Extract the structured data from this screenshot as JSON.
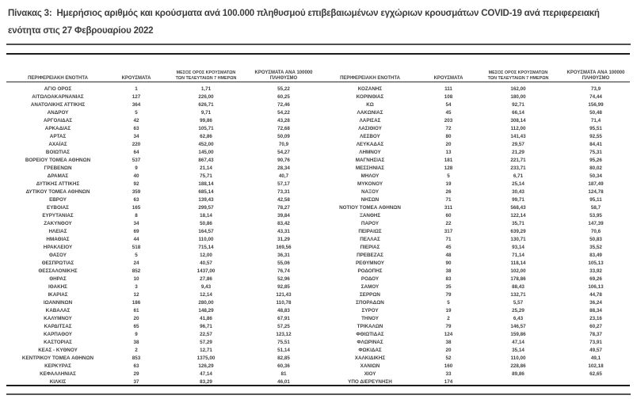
{
  "title": "Πίνακας 3:  Ημερήσιος αριθμός και κρούσματα ανά 100.000 πληθυσμού επιβεβαιωμένων εγχώριων κρουσμάτων COVID-19 ανά περιφερειακή ενότητα στις 27 Φεβρουαρίου 2022",
  "table": {
    "columns": {
      "region": "ΠΕΡΙΦΕΡΕΙΑΚΗ ΕΝΟΤΗΤΑ",
      "cases": "ΚΡΟΥΣΜΑΤΑ",
      "avg7": "ΜΕΣΟΣ ΟΡΟΣ ΚΡΟΥΣΜΑΤΩΝ ΤΩΝ ΤΕΛΕΥΤΑΙΩΝ 7 ΗΜΕΡΩΝ",
      "per100k": "ΚΡΟΥΣΜΑΤΑ ΑΝΑ 100000 ΠΛΗΘΥΣΜΟ"
    },
    "left_rows": [
      [
        "ΑΓΙΟ ΟΡΟΣ",
        "1",
        "1,71",
        "55,22"
      ],
      [
        "ΑΙΤΩΛΟΑΚΑΡΝΑΝΙΑΣ",
        "127",
        "226,00",
        "60,25"
      ],
      [
        "ΑΝΑΤΟΛΙΚΗΣ ΑΤΤΙΚΗΣ",
        "364",
        "626,71",
        "72,46"
      ],
      [
        "ΑΝΔΡΟΥ",
        "5",
        "9,71",
        "54,22"
      ],
      [
        "ΑΡΓΟΛΙΔΑΣ",
        "42",
        "99,86",
        "43,28"
      ],
      [
        "ΑΡΚΑΔΙΑΣ",
        "63",
        "105,71",
        "72,68"
      ],
      [
        "ΑΡΤΑΣ",
        "34",
        "62,86",
        "50,09"
      ],
      [
        "ΑΧΑΪΑΣ",
        "220",
        "452,00",
        "70,9"
      ],
      [
        "ΒΟΙΩΤΙΑΣ",
        "64",
        "145,00",
        "54,27"
      ],
      [
        "ΒΟΡΕΙΟΥ ΤΟΜΕΑ ΑΘΗΝΩΝ",
        "537",
        "867,43",
        "90,76"
      ],
      [
        "ΓΡΕΒΕΝΩΝ",
        "9",
        "21,14",
        "28,34"
      ],
      [
        "ΔΡΑΜΑΣ",
        "40",
        "75,71",
        "40,7"
      ],
      [
        "ΔΥΤΙΚΗΣ ΑΤΤΙΚΗΣ",
        "92",
        "188,14",
        "57,17"
      ],
      [
        "ΔΥΤΙΚΟΥ ΤΟΜΕΑ ΑΘΗΝΩΝ",
        "359",
        "685,14",
        "73,31"
      ],
      [
        "ΕΒΡΟΥ",
        "63",
        "139,43",
        "42,58"
      ],
      [
        "ΕΥΒΟΙΑΣ",
        "165",
        "299,57",
        "78,27"
      ],
      [
        "ΕΥΡΥΤΑΝΙΑΣ",
        "8",
        "18,14",
        "39,84"
      ],
      [
        "ΖΑΚΥΝΘΟΥ",
        "34",
        "50,86",
        "83,42"
      ],
      [
        "ΗΛΕΙΑΣ",
        "69",
        "164,57",
        "43,31"
      ],
      [
        "ΗΜΑΘΙΑΣ",
        "44",
        "110,00",
        "31,29"
      ],
      [
        "ΗΡΑΚΛΕΙΟΥ",
        "518",
        "715,14",
        "169,56"
      ],
      [
        "ΘΑΣΟΥ",
        "5",
        "12,00",
        "36,31"
      ],
      [
        "ΘΕΣΠΡΩΤΙΑΣ",
        "24",
        "40,57",
        "55,06"
      ],
      [
        "ΘΕΣΣΑΛΟΝΙΚΗΣ",
        "852",
        "1437,00",
        "76,74"
      ],
      [
        "ΘΗΡΑΣ",
        "10",
        "27,86",
        "52,96"
      ],
      [
        "ΙΘΑΚΗΣ",
        "3",
        "9,43",
        "92,85"
      ],
      [
        "ΙΚΑΡΙΑΣ",
        "12",
        "12,14",
        "121,43"
      ],
      [
        "ΙΩΑΝΝΙΝΩΝ",
        "186",
        "280,00",
        "110,78"
      ],
      [
        "ΚΑΒΑΛΑΣ",
        "61",
        "148,29",
        "48,83"
      ],
      [
        "ΚΑΛΥΜΝΟΥ",
        "20",
        "41,86",
        "67,91"
      ],
      [
        "ΚΑΡΔΙΤΣΑΣ",
        "65",
        "96,71",
        "57,25"
      ],
      [
        "ΚΑΡΠΑΘΟΥ",
        "9",
        "22,57",
        "123,12"
      ],
      [
        "ΚΑΣΤΟΡΙΑΣ",
        "38",
        "57,29",
        "75,51"
      ],
      [
        "ΚΕΑΣ - ΚΥΘΝΟΥ",
        "2",
        "12,71",
        "51,14"
      ],
      [
        "ΚΕΝΤΡΙΚΟΥ ΤΟΜΕΑ ΑΘΗΝΩΝ",
        "853",
        "1375,00",
        "82,85"
      ],
      [
        "ΚΕΡΚΥΡΑΣ",
        "63",
        "126,29",
        "60,36"
      ],
      [
        "ΚΕΦΑΛΛΗΝΙΑΣ",
        "29",
        "47,14",
        "81"
      ],
      [
        "ΚΙΛΚΙΣ",
        "37",
        "83,29",
        "46,01"
      ]
    ],
    "right_rows": [
      [
        "ΚΟΖΑΝΗΣ",
        "111",
        "162,00",
        "73,9"
      ],
      [
        "ΚΟΡΙΝΘΙΑΣ",
        "108",
        "180,00",
        "74,44"
      ],
      [
        "ΚΩ",
        "54",
        "92,71",
        "156,99"
      ],
      [
        "ΛΑΚΩΝΙΑΣ",
        "45",
        "66,14",
        "50,48"
      ],
      [
        "ΛΑΡΙΣΑΣ",
        "203",
        "308,14",
        "71,4"
      ],
      [
        "ΛΑΣΙΘΙΟΥ",
        "72",
        "112,00",
        "95,51"
      ],
      [
        "ΛΕΣΒΟΥ",
        "80",
        "141,43",
        "92,55"
      ],
      [
        "ΛΕΥΚΑΔΑΣ",
        "20",
        "29,57",
        "84,41"
      ],
      [
        "ΛΗΜΝΟΥ",
        "13",
        "21,29",
        "75,31"
      ],
      [
        "ΜΑΓΝΗΣΙΑΣ",
        "181",
        "221,71",
        "95,26"
      ],
      [
        "ΜΕΣΣΗΝΙΑΣ",
        "128",
        "233,71",
        "80,02"
      ],
      [
        "ΜΗΛΟΥ",
        "5",
        "6,71",
        "50,34"
      ],
      [
        "ΜΥΚΟΝΟΥ",
        "19",
        "25,14",
        "187,49"
      ],
      [
        "ΝΑΞΟΥ",
        "26",
        "30,43",
        "124,78"
      ],
      [
        "ΝΗΣΩΝ",
        "71",
        "99,71",
        "95,11"
      ],
      [
        "ΝΟΤΙΟΥ ΤΟΜΕΑ ΑΘΗΝΩΝ",
        "311",
        "568,43",
        "58,7"
      ],
      [
        "ΞΑΝΘΗΣ",
        "60",
        "122,14",
        "53,95"
      ],
      [
        "ΠΑΡΟΥ",
        "22",
        "35,71",
        "147,39"
      ],
      [
        "ΠΕΙΡΑΙΩΣ",
        "317",
        "639,29",
        "70,6"
      ],
      [
        "ΠΕΛΛΑΣ",
        "71",
        "130,71",
        "50,83"
      ],
      [
        "ΠΙΕΡΙΑΣ",
        "45",
        "93,14",
        "35,52"
      ],
      [
        "ΠΡΕΒΕΖΑΣ",
        "48",
        "71,14",
        "83,49"
      ],
      [
        "ΡΕΘΥΜΝΟΥ",
        "90",
        "118,14",
        "105,13"
      ],
      [
        "ΡΟΔΟΠΗΣ",
        "38",
        "102,00",
        "33,92"
      ],
      [
        "ΡΟΔΟΥ",
        "83",
        "178,86",
        "69,26"
      ],
      [
        "ΣΑΜΟΥ",
        "35",
        "88,43",
        "106,13"
      ],
      [
        "ΣΕΡΡΩΝ",
        "79",
        "132,71",
        "44,78"
      ],
      [
        "ΣΠΟΡΑΔΩΝ",
        "5",
        "5,57",
        "36,24"
      ],
      [
        "ΣΥΡΟΥ",
        "19",
        "25,29",
        "88,34"
      ],
      [
        "ΤΗΝΟΥ",
        "2",
        "6,43",
        "23,16"
      ],
      [
        "ΤΡΙΚΑΛΩΝ",
        "79",
        "146,57",
        "60,27"
      ],
      [
        "ΦΘΙΩΤΙΔΑΣ",
        "124",
        "159,86",
        "78,37"
      ],
      [
        "ΦΛΩΡΙΝΑΣ",
        "38",
        "47,14",
        "73,91"
      ],
      [
        "ΦΩΚΙΔΑΣ",
        "20",
        "35,14",
        "49,57"
      ],
      [
        "ΧΑΛΚΙΔΙΚΗΣ",
        "52",
        "110,00",
        "49,1"
      ],
      [
        "ΧΑΝΙΩΝ",
        "160",
        "228,86",
        "102,18"
      ],
      [
        "ΧΙΟΥ",
        "33",
        "89,86",
        "62,65"
      ],
      [
        "ΥΠΟ ΔΙΕΡΕΥΝΗΣΗ",
        "174",
        "",
        ""
      ]
    ]
  }
}
